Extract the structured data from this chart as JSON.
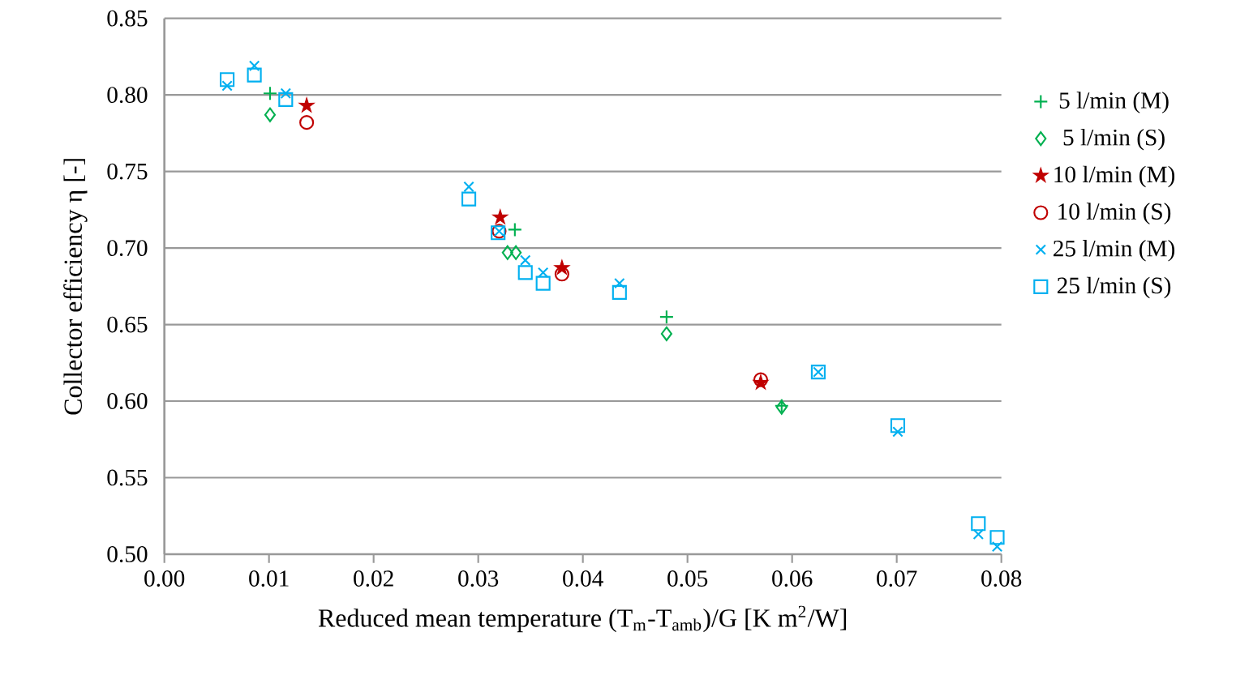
{
  "chart_data": {
    "type": "scatter",
    "xlabel": "Reduced mean temperature (T$_{m}$-T$_{amb}$)/G [K m$^{2}$/W]",
    "ylabel": "Collector efficiency η [-]",
    "xlim": [
      0,
      0.08
    ],
    "ylim": [
      0.5,
      0.85
    ],
    "xticks": [
      {
        "value": 0,
        "label": "0.00"
      },
      {
        "value": 0.01,
        "label": "0.01"
      },
      {
        "value": 0.02,
        "label": "0.02"
      },
      {
        "value": 0.03,
        "label": "0.03"
      },
      {
        "value": 0.04,
        "label": "0.04"
      },
      {
        "value": 0.05,
        "label": "0.05"
      },
      {
        "value": 0.06,
        "label": "0.06"
      },
      {
        "value": 0.07,
        "label": "0.07"
      },
      {
        "value": 0.08,
        "label": "0.08"
      }
    ],
    "yticks": [
      {
        "value": 0.5,
        "label": "0.50"
      },
      {
        "value": 0.55,
        "label": "0.55"
      },
      {
        "value": 0.6,
        "label": "0.60"
      },
      {
        "value": 0.65,
        "label": "0.65"
      },
      {
        "value": 0.7,
        "label": "0.70"
      },
      {
        "value": 0.75,
        "label": "0.75"
      },
      {
        "value": 0.8,
        "label": "0.80"
      },
      {
        "value": 0.85,
        "label": "0.85"
      }
    ],
    "grid": "y",
    "legend": "right",
    "series": [
      {
        "name": "5 l/min (M)",
        "color": "#00b050",
        "marker": "plus",
        "x": [
          0.0101,
          0.0335,
          0.048,
          0.059
        ],
        "values": [
          0.801,
          0.712,
          0.655,
          0.597
        ]
      },
      {
        "name": "5 l/min (S)",
        "color": "#00b050",
        "marker": "diamond",
        "x": [
          0.0101,
          0.0328,
          0.0336,
          0.048,
          0.059
        ],
        "values": [
          0.787,
          0.697,
          0.697,
          0.644,
          0.596
        ]
      },
      {
        "name": "10 l/min (M)",
        "color": "#c00000",
        "marker": "star",
        "x": [
          0.0136,
          0.0321,
          0.038,
          0.057
        ],
        "values": [
          0.793,
          0.72,
          0.687,
          0.612
        ]
      },
      {
        "name": "10 l/min (S)",
        "color": "#c00000",
        "marker": "circle",
        "x": [
          0.0136,
          0.032,
          0.038,
          0.057
        ],
        "values": [
          0.782,
          0.711,
          0.683,
          0.614
        ]
      },
      {
        "name": "25 l/min (M)",
        "color": "#00b0f0",
        "marker": "cross",
        "x": [
          0.006,
          0.0086,
          0.0116,
          0.0291,
          0.032,
          0.0345,
          0.0362,
          0.0435,
          0.0625,
          0.0701,
          0.0778,
          0.0796
        ],
        "values": [
          0.806,
          0.819,
          0.801,
          0.74,
          0.711,
          0.692,
          0.684,
          0.677,
          0.619,
          0.58,
          0.513,
          0.505
        ]
      },
      {
        "name": "25 l/min (S)",
        "color": "#00b0f0",
        "marker": "square",
        "x": [
          0.006,
          0.0086,
          0.0116,
          0.0291,
          0.0319,
          0.0345,
          0.0362,
          0.0435,
          0.0625,
          0.0701,
          0.0778,
          0.0796
        ],
        "values": [
          0.81,
          0.813,
          0.797,
          0.732,
          0.71,
          0.684,
          0.677,
          0.671,
          0.619,
          0.584,
          0.52,
          0.511
        ]
      }
    ]
  }
}
